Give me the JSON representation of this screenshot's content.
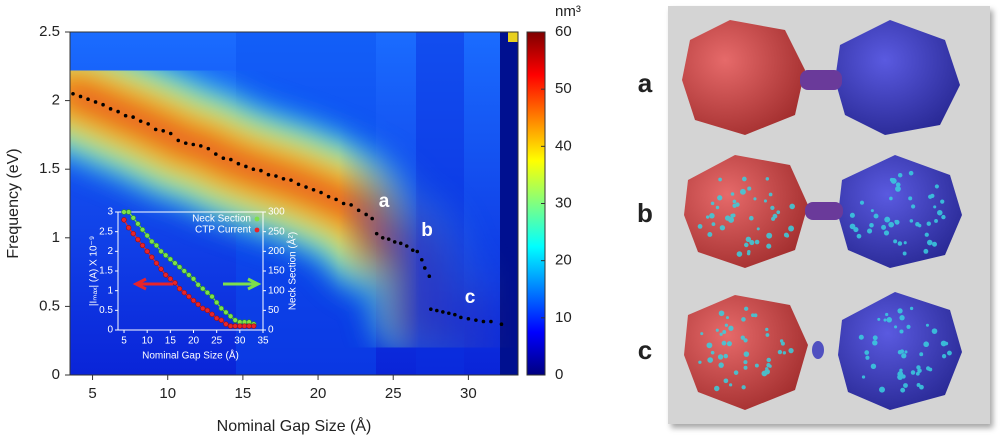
{
  "chart_data": [
    {
      "type": "scatter",
      "x_label": "Nominal Gap Size (Å)",
      "y_label": "Frequency (eV)",
      "xlim": [
        3.5,
        33.3
      ],
      "ylim": [
        0,
        2.5
      ],
      "xticks": [
        5,
        10,
        15,
        20,
        25,
        30
      ],
      "yticks": [
        0,
        0.5,
        1,
        1.5,
        2,
        2.5
      ],
      "color": "#000000",
      "annotations": [
        "a",
        "b",
        "c"
      ],
      "x": [
        3.7,
        4.2,
        4.7,
        5.2,
        5.7,
        6.2,
        6.7,
        7.2,
        7.7,
        8.2,
        8.7,
        9.2,
        9.7,
        10.2,
        10.7,
        11.2,
        11.7,
        12.2,
        12.7,
        13.2,
        13.7,
        14.2,
        14.7,
        15.2,
        15.7,
        16.2,
        16.7,
        17.2,
        17.7,
        18.2,
        18.7,
        19.2,
        19.7,
        20.2,
        20.7,
        21.2,
        21.7,
        22.2,
        22.7,
        23.2,
        23.6,
        23.9,
        24.3,
        24.7,
        25.1,
        25.5,
        25.9,
        26.3,
        26.6,
        26.9,
        27.1,
        27.4,
        27.5,
        27.9,
        28.3,
        28.7,
        29.1,
        29.5,
        30.0,
        30.5,
        31.0,
        31.5,
        32.2
      ],
      "values": [
        2.05,
        2.03,
        2.01,
        1.99,
        1.97,
        1.94,
        1.92,
        1.89,
        1.88,
        1.85,
        1.83,
        1.79,
        1.78,
        1.76,
        1.71,
        1.69,
        1.68,
        1.67,
        1.65,
        1.61,
        1.58,
        1.57,
        1.54,
        1.52,
        1.5,
        1.49,
        1.46,
        1.45,
        1.43,
        1.42,
        1.39,
        1.37,
        1.35,
        1.33,
        1.3,
        1.28,
        1.25,
        1.24,
        1.2,
        1.17,
        1.14,
        1.03,
        1.0,
        0.99,
        0.97,
        0.96,
        0.94,
        0.91,
        0.9,
        0.84,
        0.78,
        0.72,
        0.48,
        0.47,
        0.46,
        0.45,
        0.44,
        0.42,
        0.41,
        0.4,
        0.39,
        0.39,
        0.37
      ]
    },
    {
      "type": "colorbar",
      "unit": "nm³",
      "ylim": [
        0,
        60
      ],
      "yticks": [
        0,
        10,
        20,
        30,
        40,
        50,
        60
      ],
      "colors": [
        "#00007f",
        "#0000ff",
        "#0080ff",
        "#00ffff",
        "#80ff80",
        "#ffff00",
        "#ff8000",
        "#ff0000",
        "#7f0000"
      ]
    },
    {
      "type": "line",
      "x_label": "Nominal Gap Size (Å)",
      "y_label": "|Iₘₐₓ| (A) X 10⁻⁹",
      "y2_label": "Neck Section (Å²)",
      "xlim": [
        3.7,
        35
      ],
      "ylim": [
        0,
        3
      ],
      "y2lim": [
        0,
        300
      ],
      "xticks": [
        5,
        10,
        15,
        20,
        25,
        30,
        35
      ],
      "yticks": [
        0,
        0.5,
        1,
        1.5,
        2,
        2.5,
        3
      ],
      "y2ticks": [
        0,
        50,
        100,
        150,
        200,
        250,
        300
      ],
      "x": [
        5,
        6,
        7,
        8,
        9,
        10,
        11,
        12,
        13,
        14,
        15,
        16,
        17,
        18,
        19,
        20,
        21,
        22,
        23,
        24,
        25,
        26,
        27,
        28,
        29,
        30,
        31,
        32,
        33
      ],
      "series": [
        {
          "name": "Neck Section",
          "color": "#7ee04a",
          "axis": "y2",
          "values": [
            300,
            300,
            285,
            270,
            255,
            240,
            225,
            215,
            200,
            190,
            180,
            170,
            160,
            150,
            140,
            130,
            115,
            105,
            95,
            85,
            70,
            55,
            45,
            35,
            25,
            20,
            20,
            20,
            15
          ]
        },
        {
          "name": "CTP Current",
          "color": "#e8242a",
          "values": [
            2.8,
            2.6,
            2.45,
            2.3,
            2.15,
            2.0,
            1.85,
            1.7,
            1.55,
            1.4,
            1.3,
            1.2,
            1.05,
            0.95,
            0.85,
            0.75,
            0.65,
            0.55,
            0.5,
            0.4,
            0.3,
            0.25,
            0.15,
            0.1,
            0.1,
            0.1,
            0.1,
            0.1,
            0.1
          ]
        }
      ]
    }
  ],
  "renders": {
    "labels": [
      "a",
      "b",
      "c"
    ]
  }
}
